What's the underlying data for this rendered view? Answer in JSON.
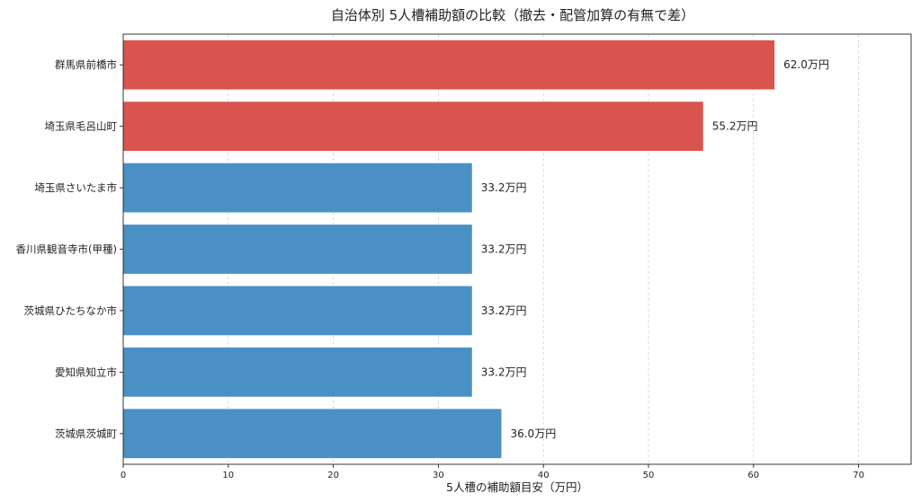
{
  "chart_data": {
    "type": "bar",
    "orientation": "horizontal",
    "title": "自治体別 5人槽補助額の比較（撤去・配管加算の有無で差）",
    "xlabel": "5人槽の補助額目安（万円）",
    "ylabel": "",
    "xlim": [
      0,
      75
    ],
    "xticks": [
      0,
      10,
      20,
      30,
      40,
      50,
      60,
      70
    ],
    "grid": "x-dashed",
    "categories": [
      "群馬県前橋市",
      "埼玉県毛呂山町",
      "埼玉県さいたま市",
      "香川県観音寺市(甲種)",
      "茨城県ひたちなか市",
      "愛知県知立市",
      "茨城県茨城町"
    ],
    "values": [
      62.0,
      55.2,
      33.2,
      33.2,
      33.2,
      33.2,
      36.0
    ],
    "value_labels": [
      "62.0万円",
      "55.2万円",
      "33.2万円",
      "33.2万円",
      "33.2万円",
      "33.2万円",
      "36.0万円"
    ],
    "bar_colors": [
      "#d9534f",
      "#d9534f",
      "#4a90c4",
      "#4a90c4",
      "#4a90c4",
      "#4a90c4",
      "#4a90c4"
    ]
  }
}
